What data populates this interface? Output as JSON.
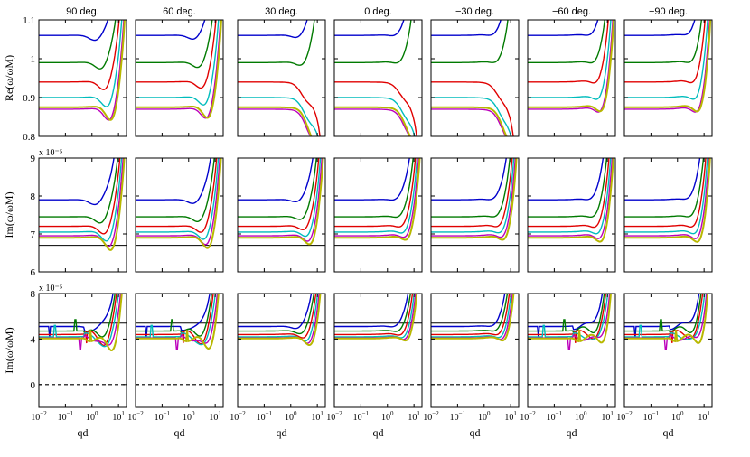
{
  "colors": {
    "blue": "#0000cc",
    "green": "#007a00",
    "red": "#e00000",
    "cyan": "#00bcbc",
    "magenta": "#bb00bb",
    "olive": "#b8b800",
    "black": "#000000",
    "gray": "#888888"
  },
  "chart_data": {
    "type": "line",
    "columns": [
      "90 deg.",
      "60 deg.",
      "30 deg.",
      "0 deg.",
      "−30 deg.",
      "−60 deg.",
      "−90 deg."
    ],
    "xlabel": "qd",
    "xscale": "log",
    "xlim": [
      0.01,
      20
    ],
    "xticks": [
      {
        "v": 0.01,
        "b": "10",
        "e": "−2"
      },
      {
        "v": 0.1,
        "b": "10",
        "e": "−1"
      },
      {
        "v": 1,
        "b": "10",
        "e": "0"
      },
      {
        "v": 10,
        "b": "10",
        "e": "1"
      }
    ],
    "rows": [
      {
        "key": "re",
        "ylabel": "Re(ω/ωM)",
        "ylim": [
          0.8,
          1.1
        ],
        "yticks": [
          {
            "v": 0.8,
            "t": "0.8"
          },
          {
            "v": 0.9,
            "t": "0.9"
          },
          {
            "v": 1.0,
            "t": "1"
          },
          {
            "v": 1.1,
            "t": "1.1"
          }
        ],
        "exponent": "",
        "baselines": [
          1.06,
          0.99,
          0.94,
          0.9,
          0.87,
          0.875
        ],
        "series": [
          "blue",
          "green",
          "red",
          "cyan",
          "magenta",
          "olive"
        ]
      },
      {
        "key": "im1",
        "ylabel": "Im(ω/ωM)",
        "ylim": [
          6,
          9
        ],
        "yticks": [
          {
            "v": 6,
            "t": "6"
          },
          {
            "v": 7,
            "t": "7"
          },
          {
            "v": 8,
            "t": "8"
          },
          {
            "v": 9,
            "t": "9"
          }
        ],
        "exponent": "x 10⁻⁵",
        "baselines": [
          7.9,
          7.45,
          7.2,
          7.05,
          6.95,
          6.9
        ],
        "reference": 6.7,
        "series": [
          "blue",
          "green",
          "red",
          "cyan",
          "magenta",
          "olive"
        ]
      },
      {
        "key": "im2",
        "ylabel": "Im(ω/ωM)",
        "ylim": [
          -2,
          8
        ],
        "yticks": [
          {
            "v": 0,
            "t": "0"
          },
          {
            "v": 4,
            "t": "4"
          },
          {
            "v": 8,
            "t": "8"
          }
        ],
        "exponent": "x 10⁻⁵",
        "baselines": [
          5.1,
          4.7,
          4.4,
          4.2,
          4.1,
          4.05
        ],
        "reference": 5.4,
        "zero_line": 0,
        "series": [
          "blue",
          "green",
          "red",
          "cyan",
          "magenta",
          "olive"
        ]
      }
    ]
  }
}
